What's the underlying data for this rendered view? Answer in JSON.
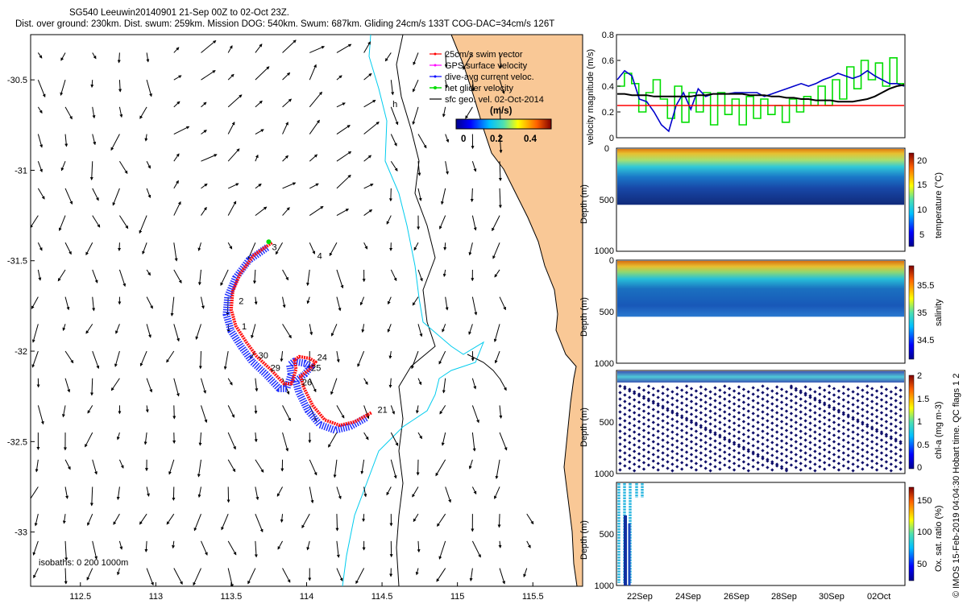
{
  "header": {
    "title1": "SG540 Leeuwin20140901 21-Sep 00Z to 02-Oct 23Z.",
    "title2": "Dist. over ground: 230km. Dist. swum: 259km. Mission DOG: 540km. Swum: 687km. Gliding 24cm/s 133T COG-DAC=34cm/s 126T"
  },
  "credit": "© IMOS 15-Feb-2019 04:04:30 Hobart time. QC flags 1  2",
  "chart_data": [
    {
      "type": "scatter",
      "id": "map",
      "xlim": [
        112.17,
        115.83
      ],
      "ylim": [
        -33.3,
        -30.25
      ],
      "x_ticks": [
        112.5,
        113,
        113.5,
        114,
        114.5,
        115,
        115.5
      ],
      "x_tick_labels": [
        "112.5",
        "113",
        "113.5",
        "114",
        "114.5",
        "115",
        "115.5"
      ],
      "y_ticks": [
        -30.5,
        -31,
        -31.5,
        -32,
        -32.5,
        -33
      ],
      "y_tick_labels": [
        "-30.5",
        "-31",
        "-31.5",
        "-32",
        "-32.5",
        "-33"
      ],
      "land_color": "#f9c896",
      "legend": {
        "items": [
          {
            "label": "25cm/s swim vector",
            "color": "#ff0000"
          },
          {
            "label": "GPS surface velocity",
            "color": "#ff00ff"
          },
          {
            "label": "dive-avg current veloc.",
            "color": "#0000ff"
          },
          {
            "label": "net glider velocity",
            "color": "#00dd00"
          },
          {
            "label": "sfc geo. vel. 02-Oct-2014",
            "color": "#000000"
          }
        ],
        "colorbar_title": "(m/s)",
        "colorbar_ticks": [
          "0",
          "0.2",
          "0.4"
        ]
      },
      "isobaths_label": "isobaths: 0   200   1000m",
      "track_labels": [
        {
          "text": "3",
          "lon": 113.77,
          "lat": -31.44
        },
        {
          "text": "4",
          "lon": 114.07,
          "lat": -31.49
        },
        {
          "text": "2",
          "lon": 113.55,
          "lat": -31.74
        },
        {
          "text": "1",
          "lon": 113.57,
          "lat": -31.88
        },
        {
          "text": "30",
          "lon": 113.68,
          "lat": -32.04
        },
        {
          "text": "29",
          "lon": 113.76,
          "lat": -32.11
        },
        {
          "text": "24",
          "lon": 114.07,
          "lat": -32.05
        },
        {
          "text": "25",
          "lon": 114.03,
          "lat": -32.11
        },
        {
          "text": "26",
          "lon": 113.97,
          "lat": -32.19
        },
        {
          "text": "21",
          "lon": 114.47,
          "lat": -32.34
        },
        {
          "text": "h",
          "lon": 114.57,
          "lat": -30.65
        }
      ],
      "track": {
        "lon": [
          113.77,
          113.65,
          113.56,
          113.51,
          113.5,
          113.53,
          113.6,
          113.67,
          113.76,
          113.85,
          113.9,
          113.93,
          113.92,
          113.95,
          114.02,
          114.06,
          114.02,
          113.96,
          113.98,
          114.04,
          114.12,
          114.22,
          114.32,
          114.43
        ],
        "lat": [
          -31.4,
          -31.47,
          -31.57,
          -31.67,
          -31.77,
          -31.86,
          -31.95,
          -32.03,
          -32.1,
          -32.18,
          -32.18,
          -32.1,
          -32.05,
          -32.03,
          -32.04,
          -32.06,
          -32.1,
          -32.14,
          -32.2,
          -32.3,
          -32.38,
          -32.41,
          -32.39,
          -32.34
        ]
      },
      "vector_field": {
        "lon_start": 112.22,
        "lon_step": 0.18,
        "lat_start": -30.35,
        "lat_step": -0.15,
        "n_lon": 19,
        "n_lat": 20,
        "description_note": null
      }
    },
    {
      "type": "line",
      "id": "velocity",
      "ylabel": "velocity magnitude (m/s)",
      "ylim": [
        0,
        0.8
      ],
      "y_ticks": [
        0,
        0.2,
        0.4,
        0.6,
        0.8
      ],
      "y_tick_labels": [
        "0",
        "0.2",
        "0.4",
        "0.6",
        "0.8"
      ],
      "xlim": [
        0,
        1
      ],
      "series": [
        {
          "color": "#00dd00",
          "values": [
            0.4,
            0.5,
            0.42,
            0.2,
            0.35,
            0.45,
            0.3,
            0.15,
            0.4,
            0.12,
            0.35,
            0.2,
            0.35,
            0.1,
            0.35,
            0.18,
            0.3,
            0.1,
            0.32,
            0.15,
            0.3,
            0.18,
            0.25,
            0.12,
            0.3,
            0.2,
            0.32,
            0.25,
            0.4,
            0.25,
            0.45,
            0.3,
            0.55,
            0.38,
            0.6,
            0.45,
            0.58,
            0.4,
            0.62,
            0.42
          ]
        },
        {
          "color": "#0000cc",
          "values": [
            0.45,
            0.52,
            0.48,
            0.3,
            0.28,
            0.2,
            0.1,
            0.05,
            0.25,
            0.35,
            0.22,
            0.38,
            0.32,
            0.34,
            0.34,
            0.34,
            0.35,
            0.35,
            0.35,
            0.35,
            0.32,
            0.34,
            0.36,
            0.38,
            0.4,
            0.42,
            0.4,
            0.42,
            0.45,
            0.47,
            0.5,
            0.48,
            0.46,
            0.48,
            0.52,
            0.48,
            0.45,
            0.42,
            0.42,
            0.4
          ]
        },
        {
          "color": "#000000",
          "values": [
            0.34,
            0.34,
            0.33,
            0.33,
            0.33,
            0.32,
            0.32,
            0.32,
            0.32,
            0.32,
            0.32,
            0.33,
            0.33,
            0.34,
            0.34,
            0.34,
            0.34,
            0.34,
            0.33,
            0.33,
            0.33,
            0.32,
            0.32,
            0.31,
            0.31,
            0.3,
            0.3,
            0.29,
            0.29,
            0.29,
            0.28,
            0.28,
            0.28,
            0.29,
            0.3,
            0.32,
            0.35,
            0.38,
            0.4,
            0.41
          ]
        },
        {
          "color": "#ff0000",
          "values": [
            0.25,
            0.25
          ]
        }
      ]
    },
    {
      "type": "heatmap",
      "id": "temperature",
      "ylabel": "Depth (m)",
      "clabel": "temperature (°C)",
      "ylim": [
        1000,
        0
      ],
      "y_tick_labels": [
        "0",
        "500",
        "1000"
      ],
      "c_ticks": [
        "20",
        "15",
        "10",
        "5"
      ]
    },
    {
      "type": "heatmap",
      "id": "salinity",
      "ylabel": "Depth (m)",
      "clabel": "salinity",
      "ylim": [
        1000,
        0
      ],
      "y_tick_labels": [
        "0",
        "500",
        "1000"
      ],
      "c_ticks": [
        "35.5",
        "35",
        "34.5"
      ]
    },
    {
      "type": "heatmap",
      "id": "chla",
      "ylabel": "Depth (m)",
      "clabel": "chl-a (mg m-3)",
      "ylim": [
        1000,
        0
      ],
      "y_tick_labels": [
        "0",
        "500",
        "1000"
      ],
      "c_ticks": [
        "2",
        "1.5",
        "1",
        "0.5",
        "0"
      ]
    },
    {
      "type": "heatmap",
      "id": "oxygen",
      "ylabel": "Depth (m)",
      "clabel": "Ox. sat. ratio (%)",
      "ylim": [
        1000,
        0
      ],
      "y_tick_labels": [
        "500",
        "1000"
      ],
      "c_ticks": [
        "150",
        "100",
        "50"
      ],
      "x_tick_labels": [
        "22Sep",
        "24Sep",
        "26Sep",
        "28Sep",
        "30Sep",
        "02Oct"
      ]
    }
  ]
}
